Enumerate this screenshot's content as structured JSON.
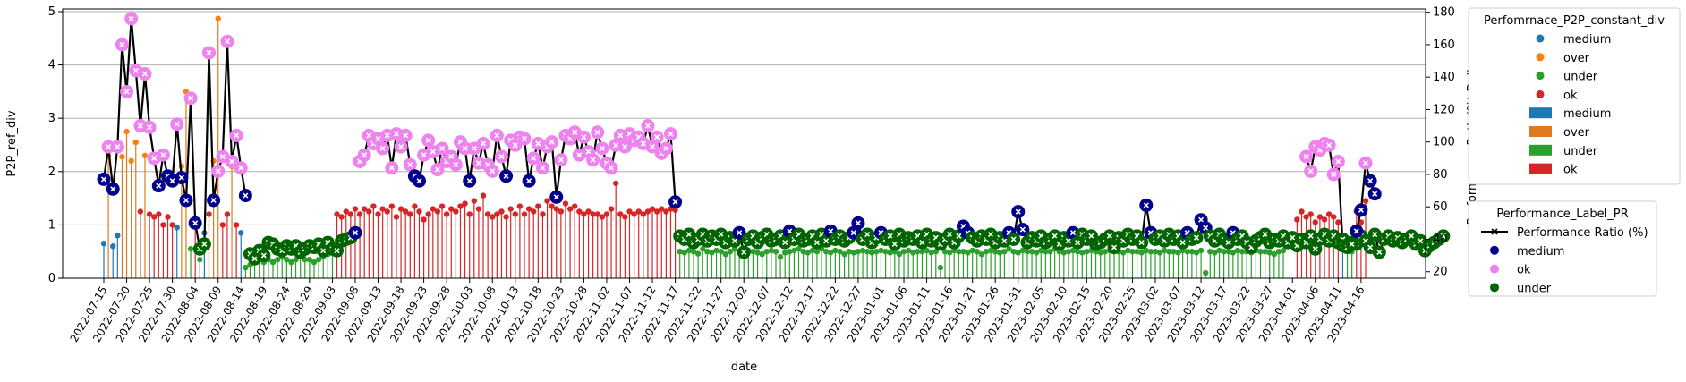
{
  "colors": {
    "medium_dot": "#1f77b4",
    "over_dot": "#ff7f0e",
    "under_dot": "#2ca02c",
    "ok_dot": "#d62728",
    "medium_bar": "#1f77b4",
    "over_bar": "#e07a1f",
    "under_bar": "#2ca02c",
    "ok_bar": "#d62728",
    "pr_medium": "#00008b",
    "pr_ok": "#ee82ee",
    "pr_under": "#006400",
    "line": "#000000"
  },
  "chart_data": {
    "type": "line",
    "xlabel": "date",
    "ylabel_left": "P2P_ref_div",
    "ylabel_right": "Performance_Ratio(%).Daily",
    "ylim_left": [
      0,
      5.05
    ],
    "ylim_right": [
      16,
      182
    ],
    "yticks_left": [
      0,
      1,
      2,
      3,
      4,
      5
    ],
    "yticks_right": [
      20,
      40,
      60,
      80,
      100,
      120,
      140,
      160,
      180
    ],
    "grid": "horizontal",
    "date_start": "2022-07-15",
    "date_end": "2023-04-17",
    "x_tick_labels": [
      "2022-07-15",
      "2022-07-20",
      "2022-07-25",
      "2022-07-30",
      "2022-08-04",
      "2022-08-09",
      "2022-08-14",
      "2022-08-19",
      "2022-08-24",
      "2022-08-29",
      "2022-09-03",
      "2022-09-08",
      "2022-09-13",
      "2022-09-18",
      "2022-09-23",
      "2022-09-28",
      "2022-10-03",
      "2022-10-08",
      "2022-10-13",
      "2022-10-18",
      "2022-10-23",
      "2022-10-28",
      "2022-11-02",
      "2022-11-07",
      "2022-11-12",
      "2022-11-17",
      "2022-11-22",
      "2022-11-27",
      "2022-12-02",
      "2022-12-07",
      "2022-12-12",
      "2022-12-17",
      "2022-12-22",
      "2022-12-27",
      "2023-01-01",
      "2023-01-06",
      "2023-01-11",
      "2023-01-16",
      "2023-01-21",
      "2023-01-26",
      "2023-01-31",
      "2023-02-05",
      "2023-02-10",
      "2023-02-15",
      "2023-02-20",
      "2023-02-25",
      "2023-03-02",
      "2023-03-07",
      "2023-03-12",
      "2023-03-17",
      "2023-03-22",
      "2023-03-27",
      "2023-04-01",
      "2023-04-06",
      "2023-04-11",
      "2023-04-16"
    ],
    "p2p_segments": [
      {
        "from": "2022-07-15",
        "values": [
          0.65,
          2.3,
          0.6,
          0.8,
          2.28,
          2.75,
          2.2,
          2.55,
          1.25,
          2.3,
          1.2,
          1.15,
          1.2,
          1.0,
          1.15,
          1.0,
          0.95,
          2.1,
          3.5,
          0.55,
          1.0,
          0.35,
          0.85,
          1.2,
          2.2,
          4.87,
          1.0,
          1.2,
          2.1,
          1.0,
          0.85
        ]
      },
      {
        "from": "2022-08-15",
        "values": [
          0.2,
          0.25,
          0.3,
          0.35,
          0.3,
          0.35,
          0.3,
          0.35,
          0.4,
          0.35,
          0.3,
          0.35,
          0.4,
          0.35,
          0.35,
          0.3,
          0.35,
          0.4,
          0.45,
          0.5
        ]
      },
      {
        "from": "2022-09-04",
        "values": [
          1.2,
          1.15,
          1.25,
          1.2,
          1.3,
          1.2,
          1.3,
          1.25,
          1.35,
          1.2,
          1.3,
          1.25,
          1.35,
          1.15,
          1.3,
          1.25,
          1.2,
          1.35,
          1.25,
          1.1,
          1.2,
          1.3,
          1.25,
          1.35,
          1.2,
          1.3,
          1.25,
          1.35,
          1.4,
          1.2,
          1.45,
          1.3,
          1.55,
          1.2,
          1.15,
          1.2,
          1.25,
          1.15,
          1.3,
          1.2,
          1.35,
          1.2,
          1.3,
          1.25,
          1.35,
          1.2,
          1.45,
          1.35,
          1.3,
          1.25,
          1.4,
          1.3,
          1.35,
          1.25,
          1.2,
          1.25,
          1.2,
          1.2,
          1.15,
          1.2,
          1.3,
          1.78,
          1.2,
          1.15,
          1.25,
          1.2,
          1.25,
          1.2,
          1.25,
          1.3,
          1.25,
          1.3,
          1.25,
          1.3,
          1.28
        ]
      },
      {
        "from": "2022-11-18",
        "values": [
          0.5,
          0.48,
          0.52,
          0.5,
          0.46,
          0.55,
          0.5,
          0.48,
          0.52,
          0.5,
          0.45,
          0.5,
          0.55,
          0.48,
          0.5,
          0.52,
          0.5,
          0.48,
          0.45,
          0.5,
          0.52,
          0.5,
          0.4,
          0.48,
          0.5,
          0.52,
          0.55,
          0.5,
          0.48,
          0.52,
          0.5,
          0.55,
          0.5,
          0.48,
          0.52,
          0.5,
          0.45,
          0.5,
          0.48,
          0.5,
          0.52,
          0.5,
          0.48,
          0.5,
          0.52,
          0.5,
          0.48,
          0.5,
          0.45,
          0.5,
          0.52,
          0.48,
          0.5,
          0.5,
          0.52,
          0.48,
          0.5,
          0.2,
          0.5,
          0.48,
          0.52,
          0.5,
          0.5,
          0.48,
          0.52,
          0.5,
          0.45,
          0.5,
          0.52,
          0.5,
          0.48,
          0.5,
          0.55,
          0.5,
          0.48,
          0.52,
          0.5,
          0.5,
          0.48,
          0.52,
          0.5,
          0.5,
          0.55,
          0.5,
          0.48,
          0.5,
          0.52,
          0.5,
          0.48,
          0.5,
          0.52,
          0.5,
          0.48,
          0.5,
          0.52,
          0.5,
          0.5,
          0.48,
          0.52,
          0.5,
          0.5,
          0.48,
          0.52,
          0.5,
          0.5,
          0.48,
          0.52,
          0.5,
          0.5,
          0.48,
          0.52,
          0.5,
          0.5,
          0.48,
          0.52,
          0.1,
          0.5,
          0.48,
          0.52,
          0.5,
          0.5,
          0.48,
          0.52,
          0.5,
          0.5,
          0.48,
          0.52,
          0.5,
          0.5,
          0.48,
          0.45,
          0.5,
          0.52
        ]
      },
      {
        "from": "2023-04-02",
        "values": [
          1.1,
          1.25,
          1.15,
          1.2,
          1.05,
          1.15,
          1.1,
          1.2,
          1.15,
          1.05,
          0.8,
          0.55,
          0.5,
          1.25,
          1.05,
          1.45
        ]
      }
    ],
    "pr_segments": [
      {
        "from": "2022-07-15",
        "values": [
          77,
          97,
          71,
          97,
          160,
          131,
          176,
          144,
          110,
          142,
          109,
          90,
          73,
          92,
          79,
          76,
          111,
          78,
          64,
          127,
          50,
          34,
          37,
          155,
          64,
          82,
          91,
          162,
          88,
          104,
          84,
          67
        ]
      },
      {
        "from": "2022-08-16",
        "values": [
          31,
          28,
          33,
          30,
          38,
          37,
          34,
          33,
          36,
          34,
          36,
          32,
          34,
          36,
          35,
          37,
          33,
          38,
          34,
          33,
          39,
          40,
          41,
          44
        ]
      },
      {
        "from": "2022-09-09",
        "values": [
          88,
          92,
          104,
          99,
          102,
          96,
          104,
          84,
          105,
          97,
          104,
          86,
          79,
          76,
          92,
          101,
          94,
          83,
          96,
          88,
          91,
          86,
          100,
          96,
          76,
          96,
          87,
          99,
          86,
          82,
          104,
          91,
          79,
          101,
          98,
          103,
          102,
          76,
          90,
          99,
          84,
          97,
          100,
          66,
          89,
          104,
          102,
          106,
          92,
          103,
          94,
          89,
          106,
          96,
          87,
          84,
          98,
          104,
          97,
          105,
          101,
          103,
          99,
          110,
          97,
          103,
          93,
          96,
          105,
          63
        ]
      },
      {
        "from": "2022-11-18",
        "values": [
          42,
          40,
          43,
          38,
          40,
          43,
          39,
          42,
          40,
          43,
          38,
          41,
          39,
          44,
          32,
          40,
          42,
          38,
          41,
          43,
          39,
          40,
          42,
          38,
          45,
          40,
          43,
          39,
          40,
          42,
          38,
          43,
          39,
          45,
          40,
          42,
          39,
          41,
          44,
          50,
          40,
          43,
          38,
          41,
          44,
          40,
          42,
          37,
          43,
          39,
          41,
          40,
          42,
          38,
          43,
          39,
          41,
          37,
          40,
          43,
          38,
          42,
          48,
          44,
          41,
          39,
          42,
          40,
          43,
          38,
          41,
          39,
          44,
          40,
          57,
          46,
          38,
          41,
          39,
          42,
          38,
          40,
          42,
          37,
          41,
          39,
          44,
          38,
          43,
          40,
          42,
          37,
          38,
          40,
          42,
          35,
          41,
          39,
          43,
          40,
          42,
          38,
          61,
          44,
          40,
          42,
          39,
          43,
          40,
          42,
          38,
          44,
          40,
          41,
          52,
          47,
          42,
          39,
          43,
          40,
          38,
          44,
          40,
          42,
          38,
          35,
          39,
          41,
          43,
          38,
          40,
          39,
          42,
          38,
          41,
          36,
          40,
          38,
          42,
          34,
          40,
          43,
          39,
          42,
          38,
          40,
          36,
          38,
          37,
          42,
          39,
          35,
          43,
          32,
          40,
          42,
          39,
          41,
          38,
          40,
          42,
          37,
          39,
          33,
          36,
          38,
          40,
          42
        ]
      },
      {
        "from": "2023-04-04",
        "values": [
          91,
          82,
          97,
          95,
          99,
          98,
          80,
          88,
          36,
          35,
          37,
          45,
          58,
          87,
          76,
          68
        ]
      }
    ],
    "legend_dots": {
      "title": "Perfomrnace_P2P_constant_div",
      "entries": [
        "medium",
        "over",
        "under",
        "ok",
        "medium",
        "over",
        "under",
        "ok"
      ]
    },
    "legend_pr": {
      "title": "Performance_Label_PR",
      "entries": [
        "Performance Ratio (%)",
        "medium",
        "ok",
        "under"
      ]
    }
  }
}
